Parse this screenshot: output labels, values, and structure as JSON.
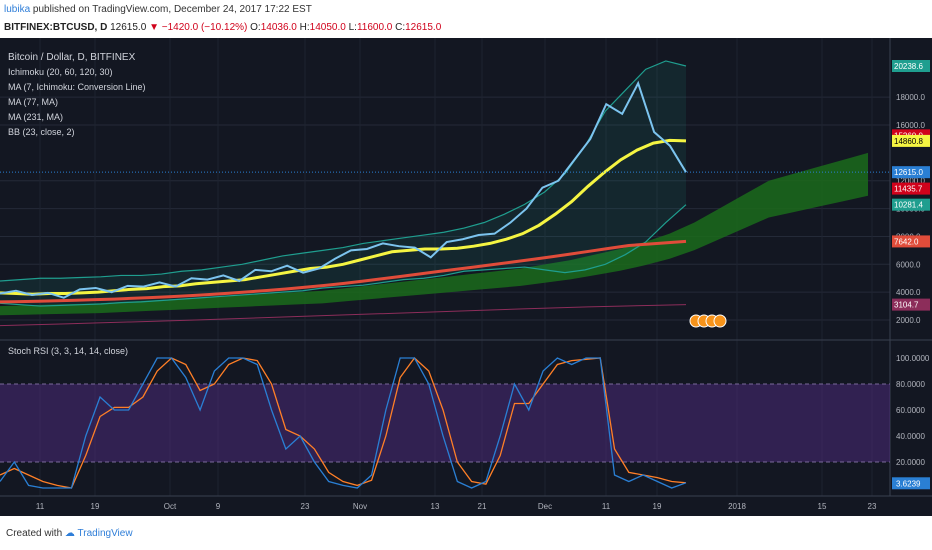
{
  "header": {
    "author": "lubika",
    "published": "published on TradingView.com, December 24, 2017 17:22 EST",
    "symbol": "BITFINEX:BTCUSD, D",
    "last": "12615.0",
    "change": "−1420.0 (−10.12%)",
    "open_label": "O:",
    "open": "14036.0",
    "high_label": "H:",
    "high": "14050.0",
    "low_label": "L:",
    "low": "11600.0",
    "close_label": "C:",
    "close": "12615.0"
  },
  "footer": {
    "created_with": "Created with",
    "brand": "TradingView"
  },
  "colors": {
    "background": "#131722",
    "price": "#7cc4ef",
    "bb": "#1f9e8f",
    "ma7": "#f5f542",
    "ma77": "#e04c3a",
    "ma231": "#8c2d5a",
    "cloud": "#1b6b1b",
    "stoch_k": "#2a7fd4",
    "stoch_d": "#ff7f27",
    "stoch_band": "#4a2a78"
  },
  "chart_data": [
    {
      "type": "line",
      "title": "Bitcoin / Dollar, D, BITFINEX",
      "legend": [
        "Ichimoku (20, 60, 120, 30)",
        "MA (7, Ichimoku: Conversion Line)",
        "MA (77, MA)",
        "MA (231, MA)",
        "BB (23, close, 2)"
      ],
      "legend_position": "top-left",
      "y_ticks": [
        "2000.0",
        "4000.0",
        "6000.0",
        "8000.0",
        "10000.0",
        "12000.0",
        "16000.0",
        "18000.0"
      ],
      "ylim": [
        0,
        22000
      ],
      "price_labels": [
        {
          "value": 20238.6,
          "text": "20238.6",
          "color": "#1f9e8f"
        },
        {
          "value": 15260.0,
          "text": "15260.0",
          "color": "#d0021b"
        },
        {
          "value": 14860.8,
          "text": "14860.8",
          "color": "#f5f542"
        },
        {
          "value": 12615.0,
          "text": "12615.0",
          "color": "#2a7fd4"
        },
        {
          "value": 11435.7,
          "text": "11435.7",
          "color": "#d0021b"
        },
        {
          "value": 10281.4,
          "text": "10281.4",
          "color": "#1f9e8f"
        },
        {
          "value": 7642.0,
          "text": "7642.0",
          "color": "#e04c3a"
        },
        {
          "value": 3104.7,
          "text": "3104.7",
          "color": "#8c2d5a"
        }
      ],
      "x_labels": [
        "11",
        "19",
        "Oct",
        "9",
        "23",
        "Nov",
        "13",
        "21",
        "Dec",
        "11",
        "19",
        "2018",
        "15",
        "23"
      ],
      "series": [
        {
          "values": [
            3900,
            4100,
            3800,
            3950,
            3600,
            4200,
            4300,
            4000,
            4450,
            4400,
            4700,
            4400,
            5000,
            4900,
            5200,
            4800,
            5600,
            5500,
            5900,
            5400,
            5700,
            6400,
            7000,
            7100,
            7500,
            7300,
            7200,
            6500,
            7600,
            7800,
            8100,
            8200,
            9000,
            10000,
            11500,
            12000,
            13500,
            15000,
            17500,
            16800,
            19000,
            15500,
            14500,
            12615
          ]
        },
        {
          "name": "MA (7, Ichimoku: Conversion Line)",
          "values": [
            3950,
            3900,
            3850,
            3900,
            3900,
            3950,
            4000,
            4100,
            4200,
            4250,
            4400,
            4450,
            4600,
            4700,
            4800,
            4900,
            5100,
            5300,
            5500,
            5700,
            5800,
            6000,
            6300,
            6600,
            6900,
            7000,
            7100,
            7100,
            7150,
            7300,
            7500,
            7800,
            8200,
            8800,
            9600,
            10500,
            11600,
            12600,
            13500,
            14200,
            14700,
            14900,
            14860
          ]
        },
        {
          "name": "MA (77, MA)",
          "values": [
            3300,
            3320,
            3350,
            3380,
            3420,
            3460,
            3500,
            3560,
            3620,
            3680,
            3750,
            3830,
            3920,
            4020,
            4120,
            4230,
            4350,
            4480,
            4620,
            4780,
            4950,
            5120,
            5300,
            5480,
            5650,
            5820,
            6000,
            6180,
            6360,
            6550,
            6750,
            6950,
            7150,
            7350,
            7450,
            7550,
            7642
          ]
        },
        {
          "name": "MA (231, MA)",
          "values": [
            1600,
            1660,
            1720,
            1790,
            1860,
            1930,
            2000,
            2080,
            2160,
            2240,
            2320,
            2400,
            2480,
            2560,
            2640,
            2720,
            2800,
            2870,
            2940,
            3000,
            3050,
            3104.7
          ]
        },
        {
          "name": "BB upper",
          "values": [
            4800,
            4900,
            5000,
            5000,
            5050,
            5100,
            5200,
            5200,
            5300,
            5500,
            5600,
            5800,
            6000,
            6300,
            6600,
            6800,
            7000,
            7200,
            7500,
            7700,
            7900,
            8100,
            8300,
            8600,
            9000,
            9600,
            10300,
            11200,
            12500,
            14500,
            17000,
            18500,
            20000,
            20600,
            20238
          ]
        },
        {
          "name": "BB lower",
          "values": [
            3200,
            3100,
            3000,
            3050,
            3100,
            3150,
            3250,
            3300,
            3400,
            3500,
            3600,
            3700,
            3800,
            3900,
            4000,
            4100,
            4300,
            4400,
            4500,
            4700,
            4900,
            5000,
            5200,
            5500,
            5600,
            5700,
            5800,
            5600,
            5400,
            5600,
            6000,
            6700,
            7600,
            9000,
            10281
          ]
        },
        {
          "name": "Ichimoku cloud",
          "values": [
            3000,
            3050,
            3100,
            3150,
            3200,
            3300,
            3400,
            3500,
            3600,
            3700,
            3800,
            3900,
            4000,
            4100,
            4300,
            4500,
            4700,
            4900,
            5100,
            5300,
            5500,
            5700,
            6000,
            6300,
            6700,
            7100,
            7600,
            8200,
            9000,
            10000,
            11000,
            12000,
            12500,
            13000,
            13500,
            14000
          ]
        }
      ]
    },
    {
      "type": "line",
      "title": "Stoch RSI (3, 3, 14, 14, close)",
      "y_ticks": [
        "20.0000",
        "40.0000",
        "60.0000",
        "80.0000",
        "100.0000"
      ],
      "ylim": [
        0,
        100
      ],
      "band": [
        20,
        80
      ],
      "last_label": "3.6239",
      "series": [
        {
          "name": "K",
          "values": [
            5,
            20,
            2,
            0,
            0,
            0,
            40,
            70,
            60,
            60,
            80,
            100,
            100,
            85,
            60,
            90,
            100,
            100,
            95,
            60,
            30,
            40,
            20,
            5,
            2,
            0,
            10,
            60,
            100,
            100,
            80,
            40,
            5,
            0,
            5,
            40,
            80,
            60,
            90,
            100,
            95,
            100,
            100,
            10,
            5,
            10,
            5,
            0,
            4
          ]
        },
        {
          "name": "D",
          "values": [
            10,
            15,
            10,
            5,
            2,
            0,
            25,
            55,
            62,
            62,
            70,
            90,
            100,
            95,
            75,
            80,
            95,
            100,
            98,
            80,
            45,
            40,
            30,
            12,
            5,
            2,
            6,
            40,
            85,
            100,
            90,
            60,
            20,
            5,
            3,
            25,
            65,
            65,
            80,
            95,
            98,
            99,
            100,
            30,
            12,
            10,
            8,
            5,
            4
          ]
        }
      ]
    }
  ]
}
